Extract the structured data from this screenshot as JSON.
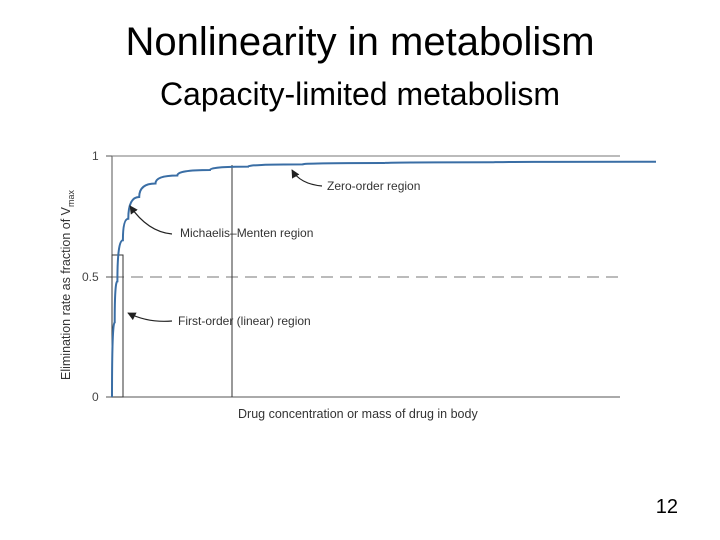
{
  "slide": {
    "title": "Nonlinearity in metabolism",
    "subtitle": "Capacity-limited metabolism",
    "page_number": "12"
  },
  "chart_data": {
    "type": "line",
    "title": "",
    "xlabel": "Drug concentration or mass of drug in body",
    "ylabel": "Elimination rate  as  fraction of  V",
    "ylabel_subscript": "max",
    "yticks": [
      "0",
      "0.5",
      "1"
    ],
    "ylim": [
      0,
      1
    ],
    "grid": false,
    "series": [
      {
        "x": [
          0,
          0.005,
          0.01,
          0.02,
          0.03,
          0.05,
          0.08,
          0.12,
          0.18,
          0.25,
          0.35,
          0.5,
          0.7,
          1.0
        ],
        "y": [
          0,
          0.31,
          0.48,
          0.65,
          0.74,
          0.83,
          0.886,
          0.919,
          0.942,
          0.956,
          0.965,
          0.971,
          0.974,
          0.976
        ]
      }
    ],
    "reference_line": {
      "y": 0.5,
      "style": "dashed"
    },
    "annotations": [
      "Zero-order region",
      "Michaelis–Menten region",
      "First-order (linear) region"
    ],
    "line_color": "#3a6ea5"
  }
}
